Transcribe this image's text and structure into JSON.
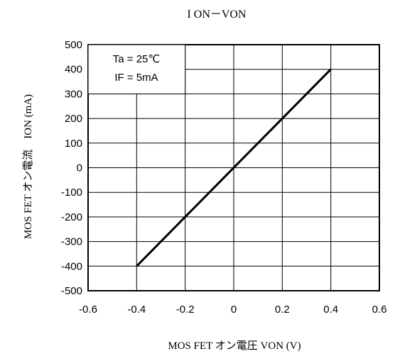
{
  "chart_data": {
    "type": "line",
    "title": "I ON－VON",
    "xlabel": "MOS FET オン電圧 VON (V)",
    "ylabel": "MOS FET オン電流　ION (mA)",
    "xlim": [
      -0.6,
      0.6
    ],
    "ylim": [
      -500,
      500
    ],
    "x_ticks": [
      "-0.6",
      "-0.4",
      "-0.2",
      "0",
      "0.2",
      "0.4",
      "0.6"
    ],
    "y_ticks": [
      "500",
      "400",
      "300",
      "200",
      "100",
      "0",
      "-100",
      "-200",
      "-300",
      "-400",
      "-500"
    ],
    "grid": true,
    "annotations": [
      "Ta = 25℃",
      "IF = 5mA"
    ],
    "series": [
      {
        "x": [
          -0.4,
          0.4
        ],
        "y": [
          -400,
          400
        ]
      }
    ]
  }
}
